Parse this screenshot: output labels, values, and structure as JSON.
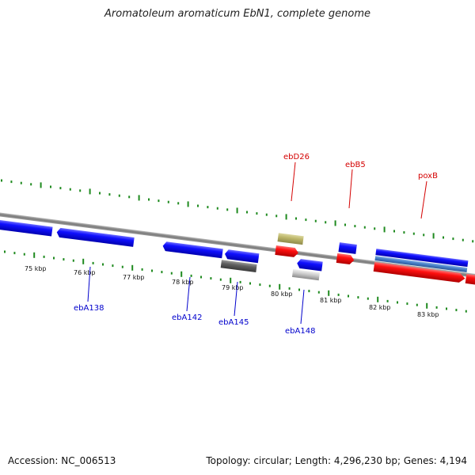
{
  "title": "Aromatoleum aromaticum EbN1, complete genome",
  "accession": "Accession: NC_006513",
  "summary": "Topology: circular; Length: 4,296,230 bp; Genes: 4,194",
  "colors": {
    "tick": "#1f8a1f",
    "backbone": "#8a8a8a",
    "forward_label": "#d40000",
    "reverse_label": "#0000cc"
  },
  "scale_labels": [
    "75 kbp",
    "76 kbp",
    "77 kbp",
    "78 kbp",
    "79 kbp",
    "80 kbp",
    "81 kbp",
    "82 kbp",
    "83 kbp"
  ],
  "forward_labels": [
    "ebD26",
    "ebB5",
    "poxB"
  ],
  "reverse_labels": [
    "ebA138",
    "ebA142",
    "ebA145",
    "ebA148"
  ]
}
